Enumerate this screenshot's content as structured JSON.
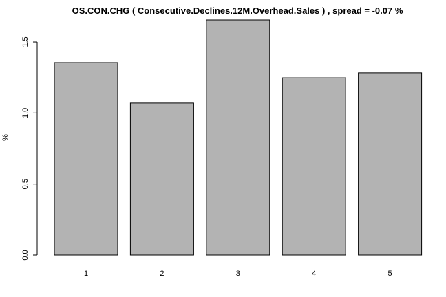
{
  "chart_data": {
    "type": "bar",
    "title": "OS.CON.CHG ( Consecutive.Declines.12M.Overhead.Sales ) , spread = -0.07 %",
    "categories": [
      "1",
      "2",
      "3",
      "4",
      "5"
    ],
    "values": [
      1.355,
      1.07,
      1.655,
      1.248,
      1.283
    ],
    "xlabel": "",
    "ylabel": "%",
    "ylim": [
      0,
      1.655
    ],
    "yticks": [
      0.0,
      0.5,
      1.0,
      1.5
    ],
    "ytick_labels": [
      "0.0",
      "0.5",
      "1.0",
      "1.5"
    ],
    "bar_color": "#b3b3b3",
    "grid": false,
    "legend": "none"
  }
}
